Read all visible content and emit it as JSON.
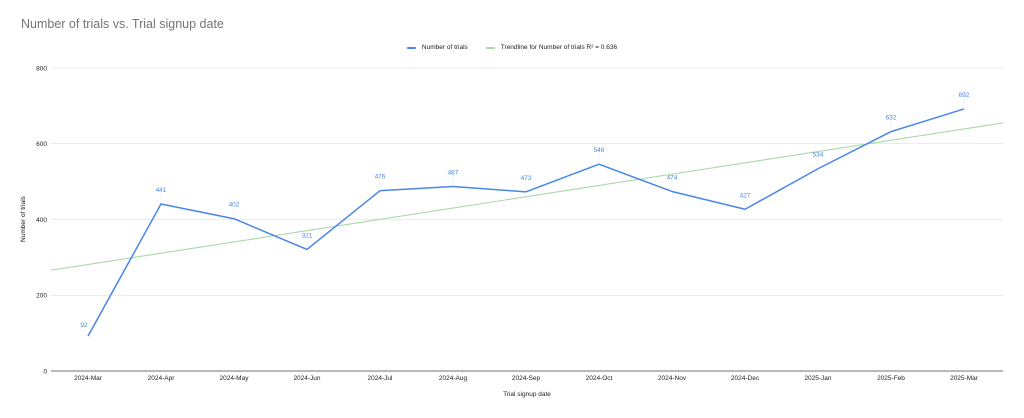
{
  "chart_data": {
    "type": "line",
    "title": "Number of trials vs. Trial signup date",
    "xlabel": "Trial signup date",
    "ylabel": "Number of trials",
    "ylim": [
      0,
      800
    ],
    "yticks": [
      0,
      200,
      400,
      600,
      800
    ],
    "grid": true,
    "legend_position": "top",
    "categories": [
      "2024-Mar",
      "2024-Apr",
      "2024-May",
      "2024-Jun",
      "2024-Jul",
      "2024-Aug",
      "2024-Sep",
      "2024-Oct",
      "2024-Nov",
      "2024-Dec",
      "2025-Jan",
      "2025-Feb",
      "2025-Mar"
    ],
    "series": [
      {
        "name": "Number of trials",
        "color": "#4a86e8",
        "values": [
          92,
          441,
          402,
          321,
          476,
          487,
          473,
          546,
          474,
          427,
          534,
          632,
          692
        ],
        "data_labels": true
      },
      {
        "name": "Trendline for Number of trials R² = 0.636",
        "color": "#a8d8a8",
        "type": "linear-trendline",
        "start_value": 266,
        "end_value": 655
      }
    ]
  },
  "legend": {
    "items": [
      {
        "label": "Number of trials",
        "color": "#4a86e8"
      },
      {
        "label": "Trendline for Number of trials R² = 0.636",
        "color": "#a8d8a8"
      }
    ]
  }
}
